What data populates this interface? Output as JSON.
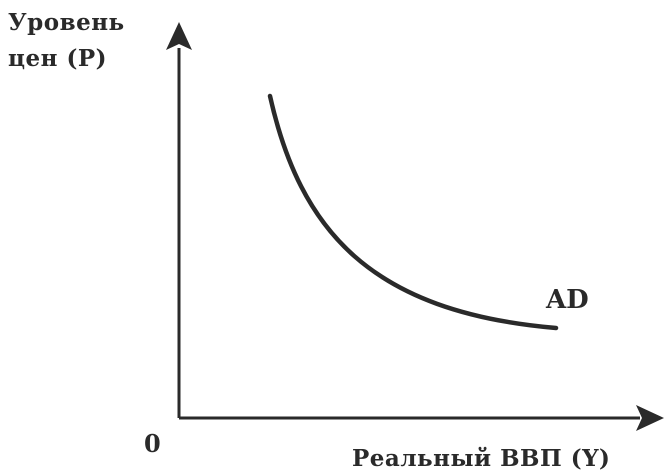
{
  "diagram": {
    "y_axis_label_line1": "Уровень",
    "y_axis_label_line2": "цен (P)",
    "x_axis_label": "Реальный ВВП (Y)",
    "origin_label": "0",
    "curve_label": "AD",
    "ink_color": "#2a2a2a"
  }
}
